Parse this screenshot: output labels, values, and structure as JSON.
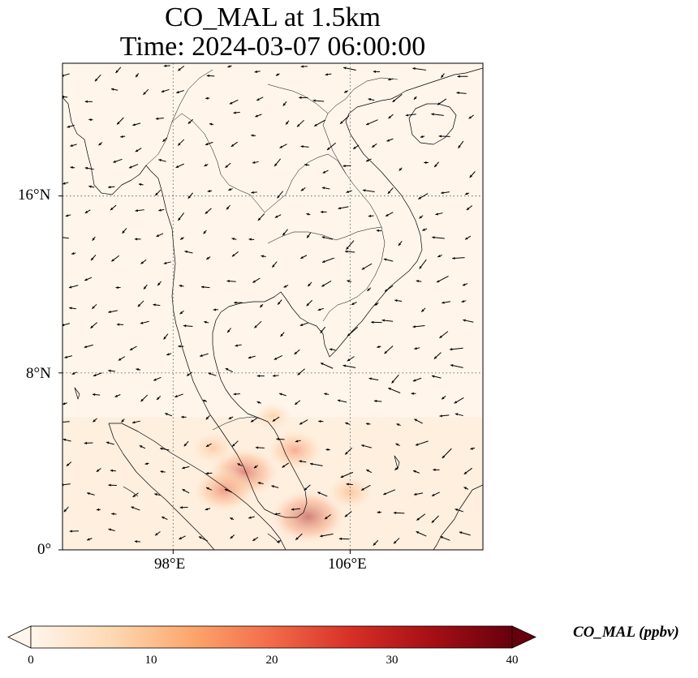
{
  "title": {
    "line1": "CO_MAL at 1.5km",
    "line2": "Time: 2024-03-07 06:00:00"
  },
  "map": {
    "lon_range": [
      93,
      112
    ],
    "lat_range": [
      0,
      22
    ],
    "gridlines": true,
    "lat_ticks": [
      {
        "value": 16,
        "label": "16°N"
      },
      {
        "value": 8,
        "label": "8°N"
      },
      {
        "value": 0,
        "label": "0°"
      }
    ],
    "lon_ticks": [
      {
        "value": 98,
        "label": "98°E"
      },
      {
        "value": 106,
        "label": "106°E"
      }
    ],
    "coastlines": true,
    "borders": true,
    "wind_vectors": true,
    "co_hotspots": [
      {
        "lon": 101.2,
        "lat": 3.5,
        "value": 30
      },
      {
        "lon": 100.3,
        "lat": 2.7,
        "value": 24
      },
      {
        "lon": 104.1,
        "lat": 1.5,
        "value": 34
      },
      {
        "lon": 103.5,
        "lat": 4.5,
        "value": 20
      },
      {
        "lon": 106.0,
        "lat": 2.6,
        "value": 14
      },
      {
        "lon": 99.8,
        "lat": 4.6,
        "value": 12
      },
      {
        "lon": 102.5,
        "lat": 6.0,
        "value": 8
      }
    ]
  },
  "colorbar": {
    "label": "CO_MAL (ppbv)",
    "min": 0,
    "max": 40,
    "ticks": [
      "0",
      "10",
      "20",
      "30",
      "40"
    ],
    "colors": [
      "#fff5eb",
      "#fdd9b4",
      "#fda66d",
      "#f26b4a",
      "#d62f26",
      "#a50f15",
      "#67000d"
    ],
    "extend": "both"
  },
  "colors": {
    "background": "#fff5eb",
    "land_line": "#000000",
    "grid": "#888888"
  }
}
